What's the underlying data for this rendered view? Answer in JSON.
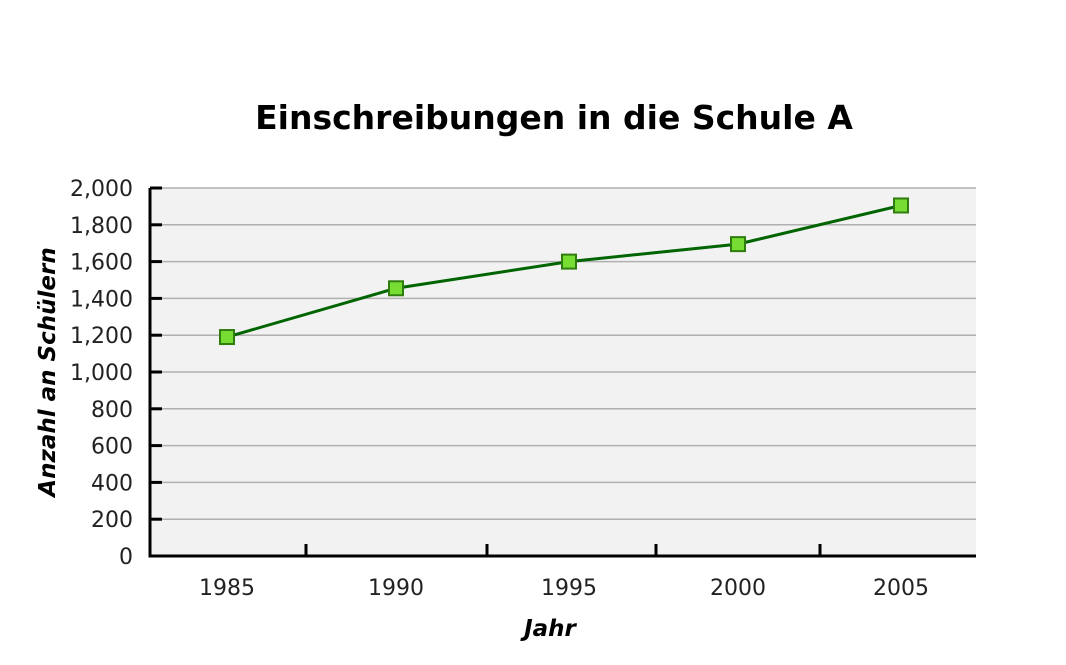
{
  "chart_data": {
    "type": "line",
    "title": "Einschreibungen in die Schule A",
    "xlabel": "Jahr",
    "ylabel": "Anzahl an Schülern",
    "x": [
      "1985",
      "1990",
      "1995",
      "2000",
      "2005"
    ],
    "series": [
      {
        "values": [
          1190,
          1455,
          1600,
          1695,
          1905
        ]
      }
    ],
    "ylim": [
      0,
      2000
    ],
    "y_ticks": [
      {
        "value": 0,
        "label": "0"
      },
      {
        "value": 200,
        "label": "200"
      },
      {
        "value": 400,
        "label": "400"
      },
      {
        "value": 600,
        "label": "600"
      },
      {
        "value": 800,
        "label": "800"
      },
      {
        "value": 1000,
        "label": "1,000"
      },
      {
        "value": 1200,
        "label": "1,200"
      },
      {
        "value": 1400,
        "label": "1,400"
      },
      {
        "value": 1600,
        "label": "1,600"
      },
      {
        "value": 1800,
        "label": "1,800"
      },
      {
        "value": 2000,
        "label": "2,000"
      }
    ],
    "grid": true,
    "legend": "none",
    "colors": {
      "line": "#006400",
      "marker_fill": "#77dd33",
      "marker_stroke": "#2f7d0e",
      "plot_background": "#f2f2f2",
      "grid": "#b0b0b0"
    }
  }
}
